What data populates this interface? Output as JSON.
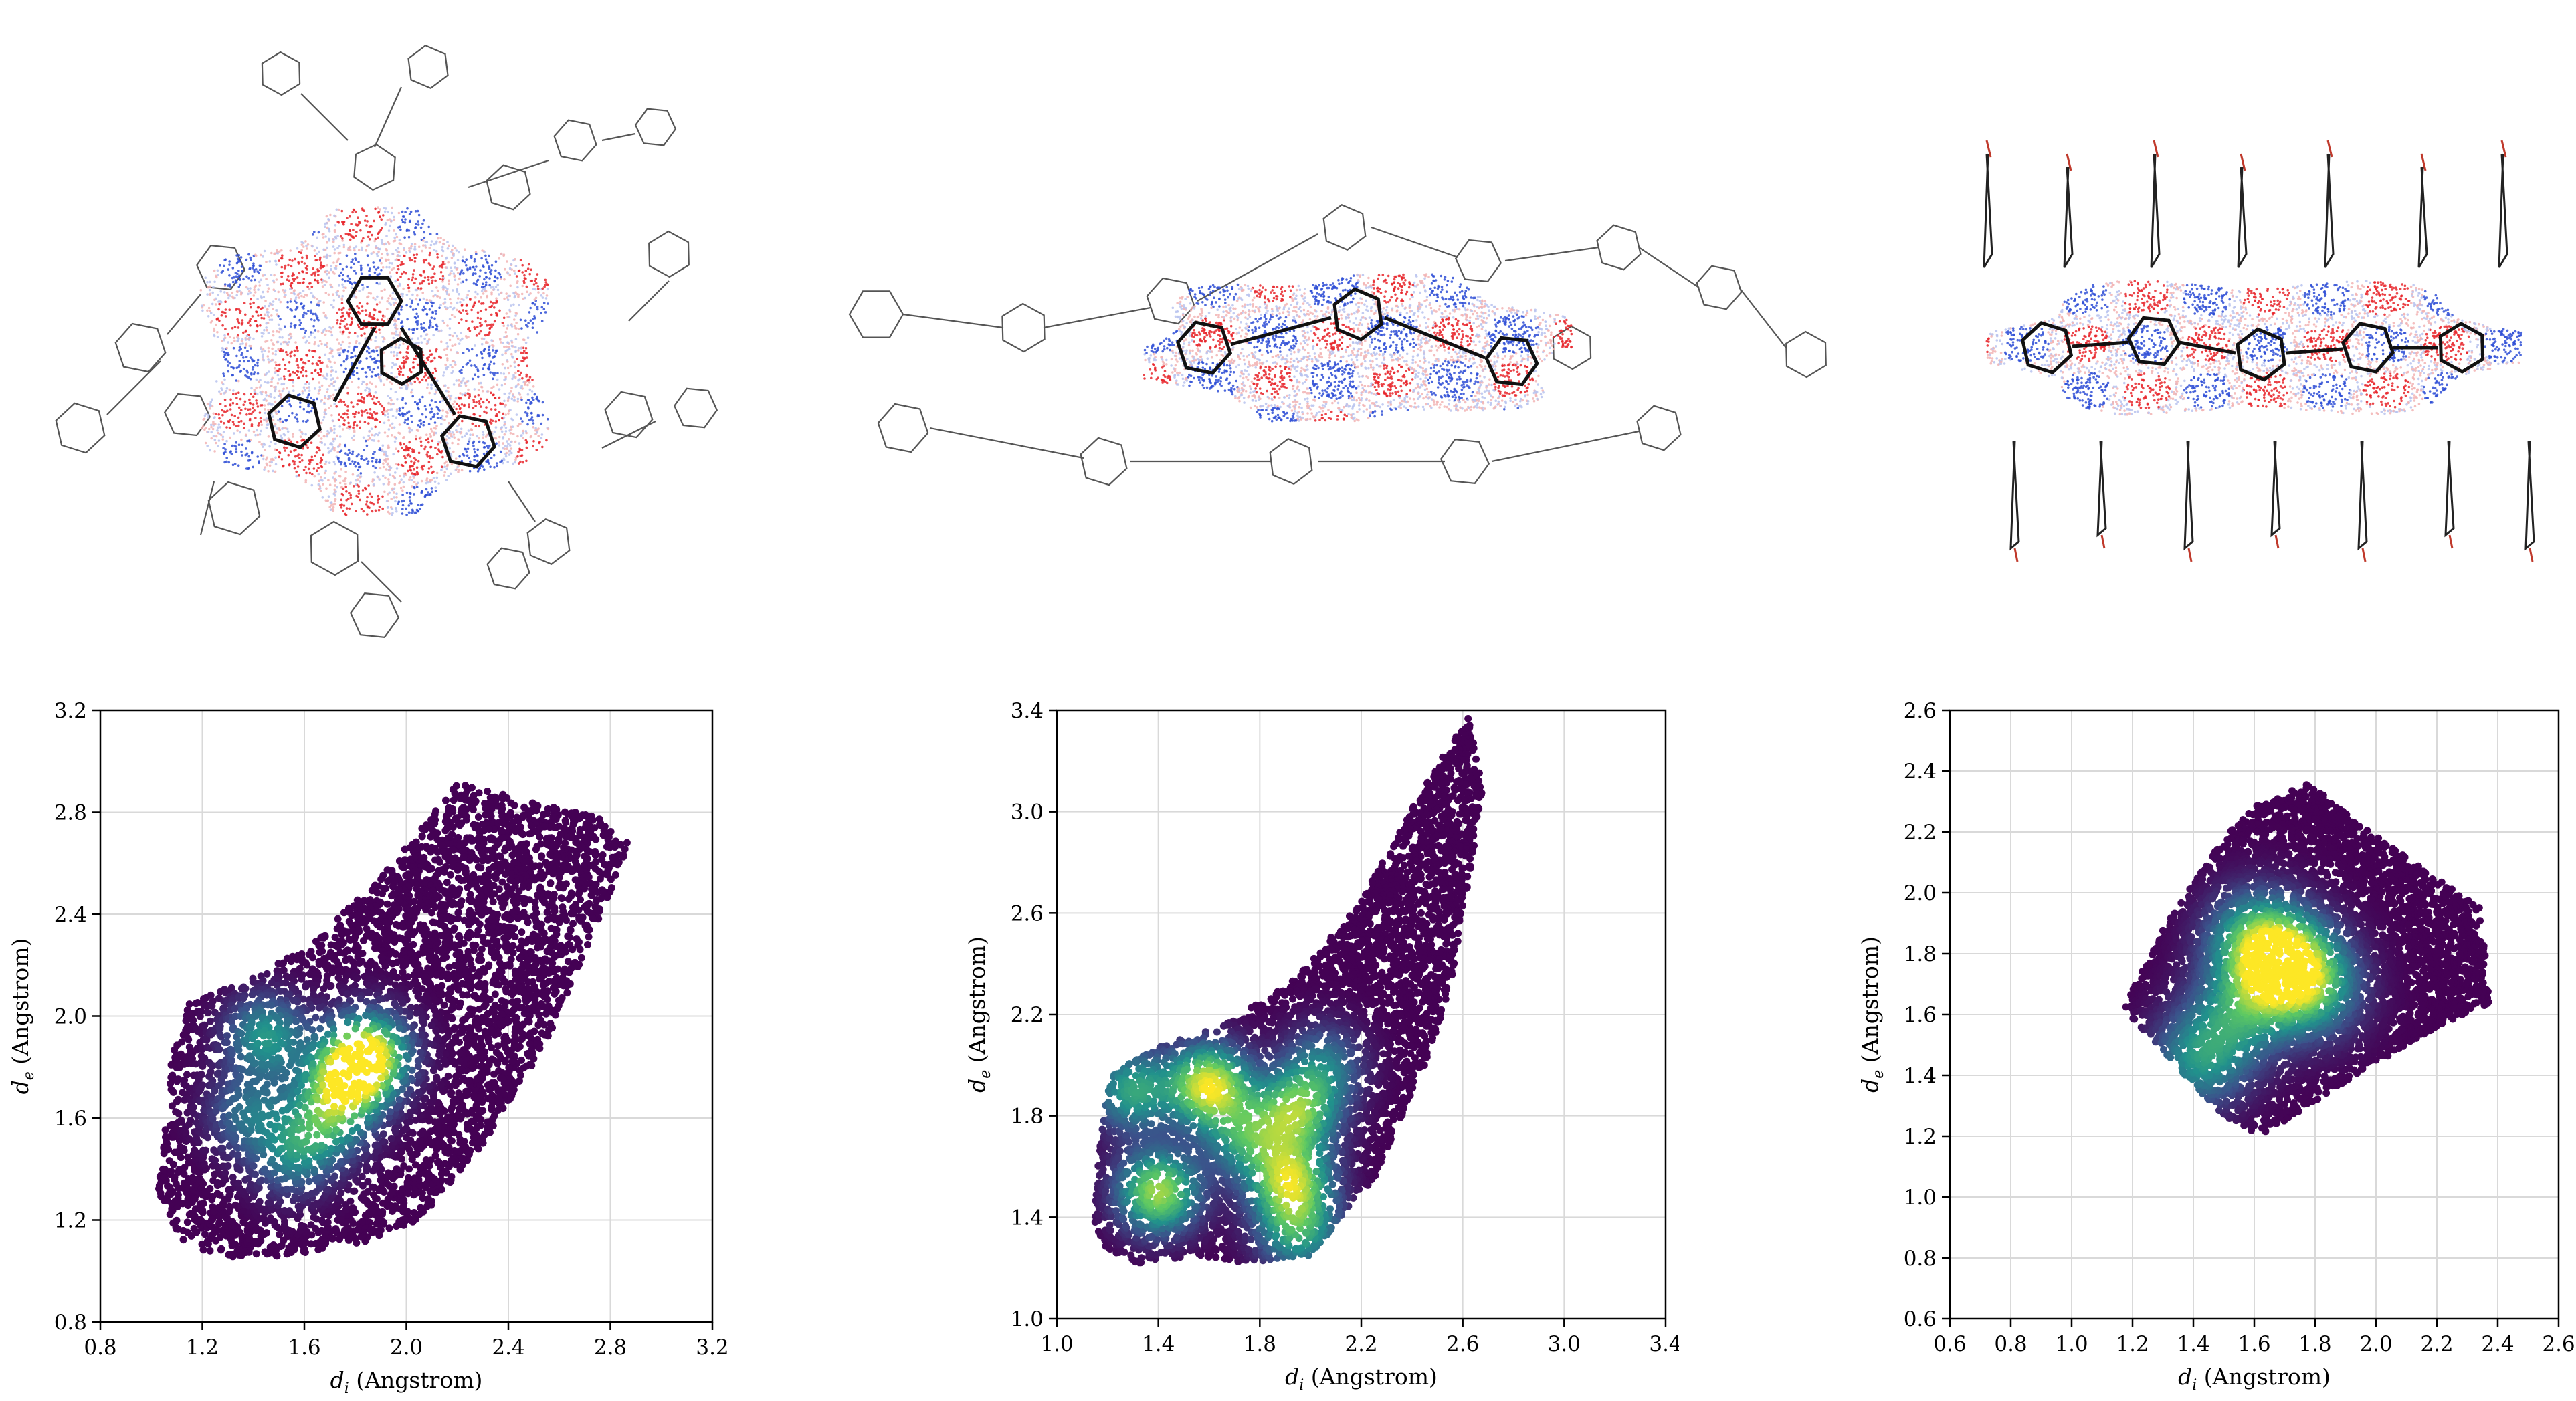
{
  "figure": {
    "molecules": [
      {
        "name": "hirshfeld-surface-view-1"
      },
      {
        "name": "hirshfeld-surface-view-2"
      },
      {
        "name": "hirshfeld-surface-view-3"
      }
    ]
  },
  "chart_data": [
    {
      "type": "scatter",
      "kind": "density-scatter (fingerprint plot)",
      "xlabel_symbol": "d",
      "xlabel_sub": "i",
      "xlabel_unit": " (Angstrom)",
      "ylabel_symbol": "d",
      "ylabel_sub": "e",
      "ylabel_unit": " (Angstrom)",
      "xlim": [
        0.8,
        3.2
      ],
      "ylim": [
        0.8,
        3.2
      ],
      "xticks": [
        "0.8",
        "1.2",
        "1.6",
        "2.0",
        "2.4",
        "2.8",
        "3.2"
      ],
      "yticks": [
        "0.8",
        "1.2",
        "1.6",
        "2.0",
        "2.4",
        "2.8",
        "3.2"
      ],
      "grid": true,
      "colormap": [
        "#440154",
        "#3b528b",
        "#21918c",
        "#5ec962",
        "#fde725"
      ],
      "envelope": [
        [
          1.06,
          1.6
        ],
        [
          1.02,
          1.3
        ],
        [
          1.12,
          1.12
        ],
        [
          1.26,
          1.05
        ],
        [
          1.5,
          1.06
        ],
        [
          1.8,
          1.1
        ],
        [
          2.05,
          1.2
        ],
        [
          2.3,
          1.5
        ],
        [
          2.55,
          1.9
        ],
        [
          2.88,
          2.68
        ],
        [
          2.75,
          2.78
        ],
        [
          2.45,
          2.85
        ],
        [
          2.2,
          2.92
        ],
        [
          1.95,
          2.6
        ],
        [
          1.65,
          2.3
        ],
        [
          1.4,
          2.15
        ],
        [
          1.15,
          2.05
        ],
        [
          1.08,
          1.85
        ]
      ],
      "hotspots": [
        {
          "x": 1.85,
          "y": 1.85,
          "weight": 1.0
        },
        {
          "x": 1.76,
          "y": 1.74,
          "weight": 0.8
        },
        {
          "x": 1.45,
          "y": 1.92,
          "weight": 0.55
        },
        {
          "x": 1.68,
          "y": 1.58,
          "weight": 0.5
        },
        {
          "x": 1.55,
          "y": 1.45,
          "weight": 0.4
        },
        {
          "x": 1.38,
          "y": 1.62,
          "weight": 0.38
        }
      ]
    },
    {
      "type": "scatter",
      "kind": "density-scatter (fingerprint plot)",
      "xlabel_symbol": "d",
      "xlabel_sub": "i",
      "xlabel_unit": " (Angstrom)",
      "ylabel_symbol": "d",
      "ylabel_sub": "e",
      "ylabel_unit": " (Angstrom)",
      "xlim": [
        1.0,
        3.4
      ],
      "ylim": [
        1.0,
        3.4
      ],
      "xticks": [
        "1.0",
        "1.4",
        "1.8",
        "2.2",
        "2.6",
        "3.0",
        "3.4"
      ],
      "yticks": [
        "1.0",
        "1.4",
        "1.8",
        "2.2",
        "2.6",
        "3.0",
        "3.4"
      ],
      "grid": true,
      "colormap": [
        "#440154",
        "#3b528b",
        "#21918c",
        "#5ec962",
        "#fde725"
      ],
      "envelope": [
        [
          1.14,
          1.4
        ],
        [
          1.18,
          1.28
        ],
        [
          1.32,
          1.22
        ],
        [
          1.55,
          1.25
        ],
        [
          1.75,
          1.22
        ],
        [
          2.0,
          1.25
        ],
        [
          2.25,
          1.55
        ],
        [
          2.45,
          2.0
        ],
        [
          2.55,
          2.3
        ],
        [
          2.62,
          2.7
        ],
        [
          2.68,
          3.1
        ],
        [
          2.62,
          3.38
        ],
        [
          2.45,
          3.1
        ],
        [
          2.2,
          2.65
        ],
        [
          1.95,
          2.35
        ],
        [
          1.65,
          2.15
        ],
        [
          1.4,
          2.08
        ],
        [
          1.2,
          1.95
        ]
      ],
      "hotspots": [
        {
          "x": 1.6,
          "y": 1.92,
          "weight": 1.0
        },
        {
          "x": 1.4,
          "y": 1.5,
          "weight": 0.9
        },
        {
          "x": 1.92,
          "y": 1.55,
          "weight": 0.85
        },
        {
          "x": 1.95,
          "y": 1.82,
          "weight": 0.75
        },
        {
          "x": 1.3,
          "y": 1.9,
          "weight": 0.6
        },
        {
          "x": 1.95,
          "y": 1.35,
          "weight": 0.6
        },
        {
          "x": 1.75,
          "y": 1.72,
          "weight": 0.55
        },
        {
          "x": 2.05,
          "y": 2.0,
          "weight": 0.4
        }
      ]
    },
    {
      "type": "scatter",
      "kind": "density-scatter (fingerprint plot)",
      "xlabel_symbol": "d",
      "xlabel_sub": "i",
      "xlabel_unit": " (Angstrom)",
      "ylabel_symbol": "d",
      "ylabel_sub": "e",
      "ylabel_unit": " (Angstrom)",
      "xlim": [
        0.6,
        2.6
      ],
      "ylim": [
        0.6,
        2.6
      ],
      "xticks": [
        "0.6",
        "0.8",
        "1.0",
        "1.2",
        "1.4",
        "1.6",
        "1.8",
        "2.0",
        "2.2",
        "2.4",
        "2.6"
      ],
      "yticks": [
        "0.6",
        "0.8",
        "1.0",
        "1.2",
        "1.4",
        "1.6",
        "1.8",
        "2.0",
        "2.2",
        "2.4",
        "2.6"
      ],
      "grid": true,
      "colormap": [
        "#440154",
        "#3b528b",
        "#21918c",
        "#5ec962",
        "#fde725"
      ],
      "envelope": [
        [
          1.17,
          1.62
        ],
        [
          1.32,
          1.46
        ],
        [
          1.48,
          1.28
        ],
        [
          1.62,
          1.2
        ],
        [
          1.9,
          1.38
        ],
        [
          2.2,
          1.56
        ],
        [
          2.38,
          1.64
        ],
        [
          2.34,
          1.95
        ],
        [
          2.2,
          2.05
        ],
        [
          1.95,
          2.22
        ],
        [
          1.78,
          2.36
        ],
        [
          1.62,
          2.3
        ],
        [
          1.5,
          2.18
        ],
        [
          1.3,
          1.88
        ]
      ],
      "hotspots": [
        {
          "x": 1.7,
          "y": 1.76,
          "weight": 1.0
        },
        {
          "x": 1.6,
          "y": 1.85,
          "weight": 0.55
        },
        {
          "x": 1.8,
          "y": 1.68,
          "weight": 0.45
        },
        {
          "x": 1.42,
          "y": 1.45,
          "weight": 0.5
        },
        {
          "x": 1.55,
          "y": 1.6,
          "weight": 0.45
        }
      ]
    }
  ]
}
